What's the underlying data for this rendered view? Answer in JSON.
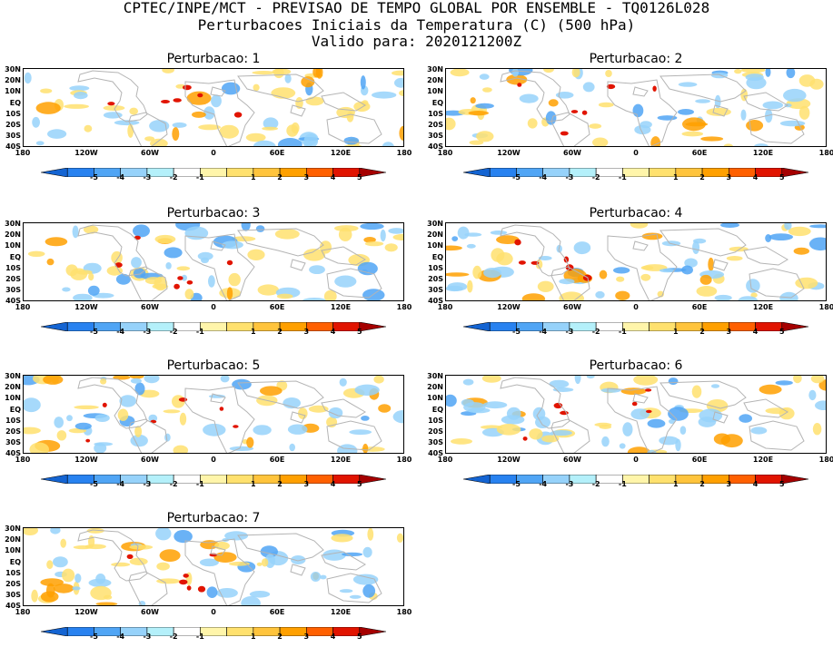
{
  "header": {
    "line1": "CPTEC/INPE/MCT - PREVISAO DE TEMPO GLOBAL POR ENSEMBLE - TQ0126L028",
    "line2": "Perturbacoes Iniciais da Temperatura (C) (500 hPa)",
    "line3": "Valido para: 2020121200Z"
  },
  "panels": [
    {
      "title": "Perturbacao: 1"
    },
    {
      "title": "Perturbacao: 2"
    },
    {
      "title": "Perturbacao: 3"
    },
    {
      "title": "Perturbacao: 4"
    },
    {
      "title": "Perturbacao: 5"
    },
    {
      "title": "Perturbacao: 6"
    },
    {
      "title": "Perturbacao: 7"
    }
  ],
  "lat_labels": [
    "30N",
    "20N",
    "10N",
    "EQ",
    "10S",
    "20S",
    "30S",
    "40S"
  ],
  "lon_labels": [
    "180",
    "120W",
    "60W",
    "0",
    "60E",
    "120E",
    "180"
  ],
  "colorbar": {
    "labels": [
      "-5",
      "-4",
      "-3",
      "-2",
      "-1",
      "1",
      "2",
      "3",
      "4",
      "5"
    ],
    "colors": [
      "#1464d2",
      "#2882f0",
      "#50a5f5",
      "#96d2fa",
      "#b4f0fa",
      "#ffffff",
      "#fff5aa",
      "#ffe16e",
      "#ffc43c",
      "#ffa000",
      "#ff6000",
      "#e11400",
      "#a50000"
    ]
  },
  "map_colors": {
    "land": "#b4b4b4",
    "cold": "#96d2fa",
    "cold2": "#50a5f5",
    "warm": "#ffe16e",
    "warm2": "#ffa000",
    "hot": "#e11400"
  }
}
